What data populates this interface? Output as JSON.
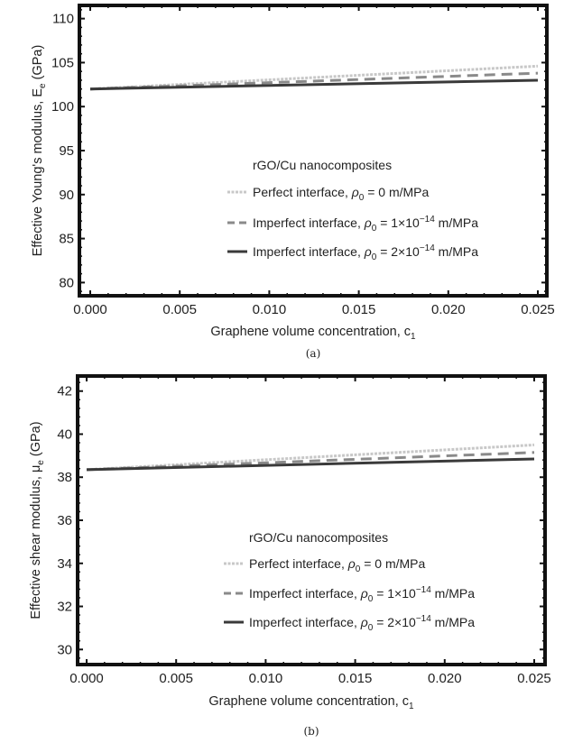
{
  "chart_data": [
    {
      "type": "line",
      "panel_label": "(a)",
      "xlabel": "Graphene volume concentration, c",
      "xlabel_sub": "1",
      "ylabel": "Effective Young's modulus, E",
      "ylabel_sub": "e",
      "ylabel_unit": " (GPa)",
      "xlim": [
        0,
        0.025
      ],
      "ylim": [
        78.5,
        111.5
      ],
      "xticks": [
        "0.000",
        "0.005",
        "0.010",
        "0.015",
        "0.020",
        "0.025"
      ],
      "xtick_values": [
        0,
        0.005,
        0.01,
        0.015,
        0.02,
        0.025
      ],
      "yticks": [
        "80",
        "85",
        "90",
        "95",
        "100",
        "105",
        "110"
      ],
      "ytick_values": [
        80,
        85,
        90,
        95,
        100,
        105,
        110
      ],
      "grid": false,
      "legend_title": "rGO/Cu nanocomposites",
      "legend_placement": "center-right",
      "series": [
        {
          "name": "Perfect interface, ρ0 = 0 m/MPa",
          "label_pre": "Perfect interface, ",
          "rho": "ρ",
          "rho_sub": "0",
          "label_eq": " = 0 m/MPa",
          "exp": "",
          "label_unit": "",
          "style": "dotted",
          "color": "#c8c8c8",
          "x": [
            0,
            0.025
          ],
          "y": [
            102.0,
            104.6
          ]
        },
        {
          "name": "Imperfect interface, ρ0 = 1×10^-14 m/MPa",
          "label_pre": "Imperfect interface, ",
          "rho": "ρ",
          "rho_sub": "0",
          "label_eq": " = 1×10",
          "exp": "−14",
          "label_unit": " m/MPa",
          "style": "dashed",
          "color": "#8a8a8a",
          "x": [
            0,
            0.025
          ],
          "y": [
            102.0,
            103.8
          ]
        },
        {
          "name": "Imperfect interface, ρ0 = 2×10^-14 m/MPa",
          "label_pre": "Imperfect interface, ",
          "rho": "ρ",
          "rho_sub": "0",
          "label_eq": " = 2×10",
          "exp": "−14",
          "label_unit": " m/MPa",
          "style": "solid",
          "color": "#3a3a3a",
          "x": [
            0,
            0.025
          ],
          "y": [
            102.0,
            103.0
          ]
        }
      ]
    },
    {
      "type": "line",
      "panel_label": "(b)",
      "xlabel": "Graphene volume concentration, c",
      "xlabel_sub": "1",
      "ylabel": "Effective shear modulus, μ",
      "ylabel_sub": "e",
      "ylabel_unit": " (GPa)",
      "xlim": [
        0,
        0.025
      ],
      "ylim": [
        29.3,
        42.7
      ],
      "xticks": [
        "0.000",
        "0.005",
        "0.010",
        "0.015",
        "0.020",
        "0.025"
      ],
      "xtick_values": [
        0,
        0.005,
        0.01,
        0.015,
        0.02,
        0.025
      ],
      "yticks": [
        "30",
        "32",
        "34",
        "36",
        "38",
        "40",
        "42"
      ],
      "ytick_values": [
        30,
        32,
        34,
        36,
        38,
        40,
        42
      ],
      "grid": false,
      "legend_title": "rGO/Cu nanocomposites",
      "legend_placement": "center-right",
      "series": [
        {
          "name": "Perfect interface, ρ0 = 0 m/MPa",
          "label_pre": "Perfect interface, ",
          "rho": "ρ",
          "rho_sub": "0",
          "label_eq": " = 0 m/MPa",
          "exp": "",
          "label_unit": "",
          "style": "dotted",
          "color": "#c8c8c8",
          "x": [
            0,
            0.025
          ],
          "y": [
            38.35,
            39.5
          ]
        },
        {
          "name": "Imperfect interface, ρ0 = 1×10^-14 m/MPa",
          "label_pre": "Imperfect interface, ",
          "rho": "ρ",
          "rho_sub": "0",
          "label_eq": " = 1×10",
          "exp": "−14",
          "label_unit": " m/MPa",
          "style": "dashed",
          "color": "#8a8a8a",
          "x": [
            0,
            0.025
          ],
          "y": [
            38.35,
            39.15
          ]
        },
        {
          "name": "Imperfect interface, ρ0 = 2×10^-14 m/MPa",
          "label_pre": "Imperfect interface, ",
          "rho": "ρ",
          "rho_sub": "0",
          "label_eq": " = 2×10",
          "exp": "−14",
          "label_unit": " m/MPa",
          "style": "solid",
          "color": "#3a3a3a",
          "x": [
            0,
            0.025
          ],
          "y": [
            38.35,
            38.85
          ]
        }
      ]
    }
  ]
}
